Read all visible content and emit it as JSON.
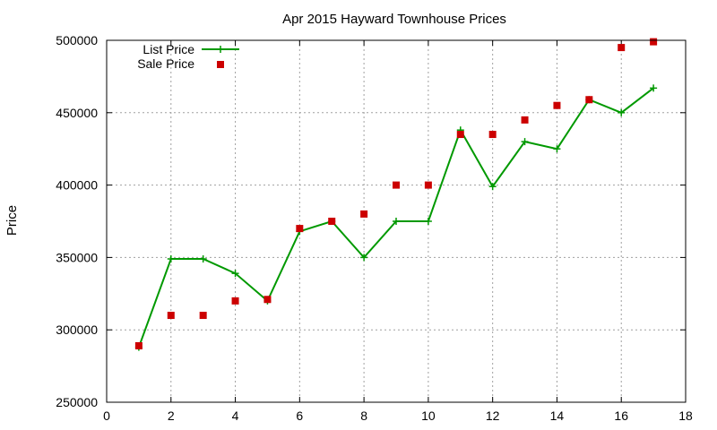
{
  "chart_data": {
    "type": "line",
    "title": "Apr 2015 Hayward Townhouse Prices",
    "xlabel": "",
    "ylabel": "Price",
    "xlim": [
      0,
      18
    ],
    "ylim": [
      250000,
      500000
    ],
    "x_ticks": [
      0,
      2,
      4,
      6,
      8,
      10,
      12,
      14,
      16,
      18
    ],
    "y_ticks": [
      250000,
      300000,
      350000,
      400000,
      450000,
      500000
    ],
    "grid": true,
    "legend_position": "top-left",
    "series": [
      {
        "name": "List Price",
        "style": "line+cross",
        "color": "#009900",
        "x": [
          1,
          2,
          3,
          4,
          5,
          6,
          7,
          8,
          9,
          10,
          11,
          12,
          13,
          14,
          15,
          16,
          17
        ],
        "values": [
          288000,
          349000,
          349000,
          339000,
          320000,
          368000,
          375000,
          350000,
          375000,
          375000,
          438000,
          399000,
          430000,
          425000,
          459000,
          450000,
          467000
        ]
      },
      {
        "name": "Sale Price",
        "style": "square",
        "color": "#cc0000",
        "x": [
          1,
          2,
          3,
          4,
          5,
          6,
          7,
          8,
          9,
          10,
          11,
          12,
          13,
          14,
          15,
          16,
          17
        ],
        "values": [
          289000,
          310000,
          310000,
          320000,
          321000,
          370000,
          375000,
          380000,
          400000,
          400000,
          435000,
          435000,
          445000,
          455000,
          459000,
          495000,
          499000
        ]
      }
    ]
  }
}
